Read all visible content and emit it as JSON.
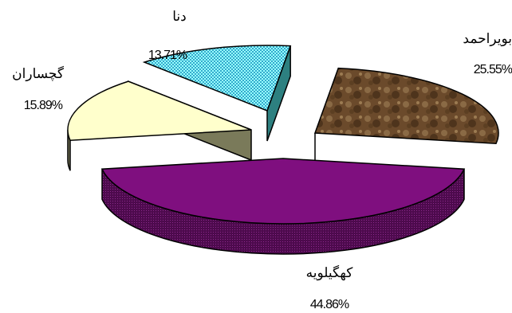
{
  "chart_data": {
    "type": "pie",
    "title": "",
    "style": "3d-exploded",
    "slices": [
      {
        "label": "بویراحمد",
        "value": 25.55,
        "value_label": "25.55%",
        "color": "#6b4a2b",
        "pattern": "brown-marble"
      },
      {
        "label": "کهگیلویه",
        "value": 44.86,
        "value_label": "44.86%",
        "color": "#7f0f7f"
      },
      {
        "label": "گچساران",
        "value": 15.89,
        "value_label": "15.89%",
        "color": "#ffffcc"
      },
      {
        "label": "دنا",
        "value": 13.71,
        "value_label": "13.71%",
        "color": "#99ffff",
        "pattern": "checker"
      }
    ]
  }
}
